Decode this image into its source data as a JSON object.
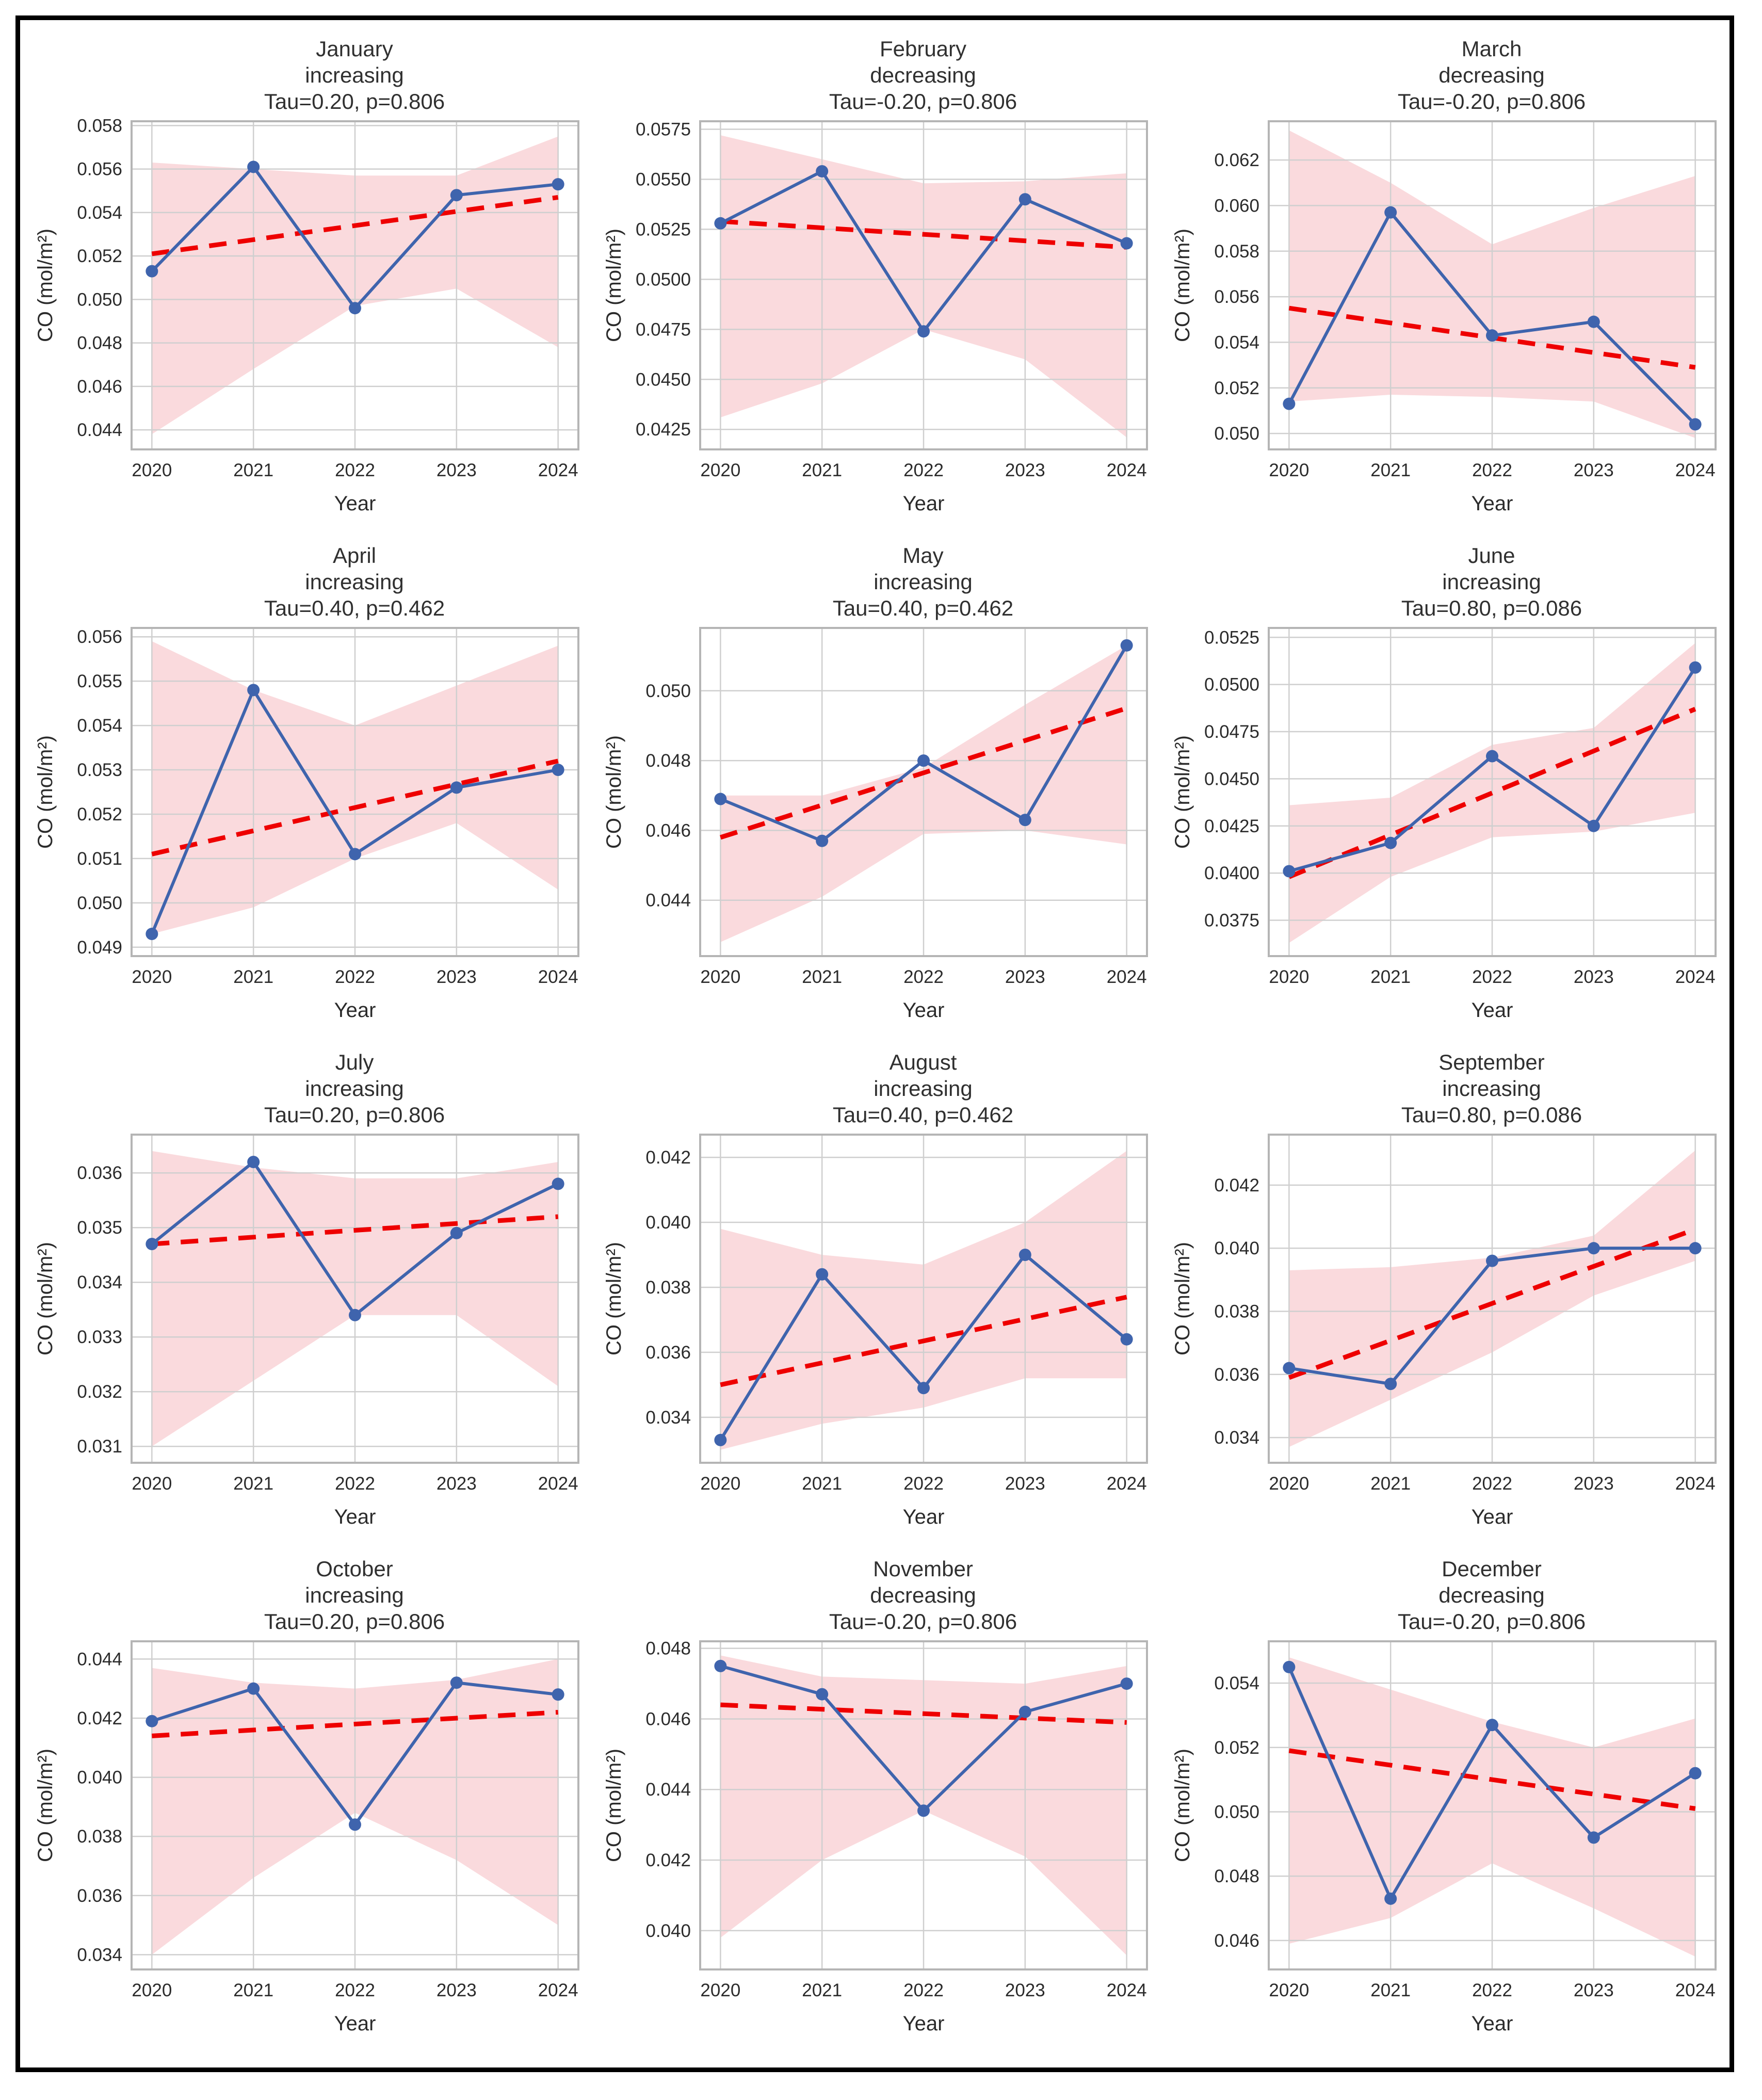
{
  "figure": {
    "xlabel": "Year",
    "ylabel": "CO (mol/m²)",
    "x_ticks": [
      "2020",
      "2021",
      "2022",
      "2023",
      "2024"
    ],
    "colors": {
      "line": "#3f64ad",
      "marker": "#3f64ad",
      "trend": "#ee0000",
      "band": "#fadadd",
      "grid": "#cfcfcf",
      "spine": "#b5b5b5",
      "text": "#2b2b2b",
      "title": "#303030",
      "frame": "#000000"
    }
  },
  "chart_data": [
    {
      "type": "line",
      "title": "January",
      "subtitle": "increasing",
      "stats": "Tau=0.20, p=0.806",
      "x": [
        2020,
        2021,
        2022,
        2023,
        2024
      ],
      "values": [
        0.0513,
        0.0561,
        0.0496,
        0.0548,
        0.0553
      ],
      "trend": {
        "start": 0.0521,
        "end": 0.0547
      },
      "band_upper": [
        0.0563,
        0.056,
        0.0557,
        0.0557,
        0.0575
      ],
      "band_lower": [
        0.0438,
        0.0468,
        0.0497,
        0.0505,
        0.0478
      ],
      "ytick_labels": [
        "0.044",
        "0.046",
        "0.048",
        "0.050",
        "0.052",
        "0.054",
        "0.056",
        "0.058"
      ],
      "yticks": [
        0.044,
        0.046,
        0.048,
        0.05,
        0.052,
        0.054,
        0.056,
        0.058
      ],
      "ylim": [
        0.0431,
        0.0582
      ]
    },
    {
      "type": "line",
      "title": "February",
      "subtitle": "decreasing",
      "stats": "Tau=-0.20, p=0.806",
      "x": [
        2020,
        2021,
        2022,
        2023,
        2024
      ],
      "values": [
        0.0528,
        0.0554,
        0.0474,
        0.054,
        0.0518
      ],
      "trend": {
        "start": 0.0529,
        "end": 0.0516
      },
      "band_upper": [
        0.0572,
        0.056,
        0.0548,
        0.0549,
        0.0553
      ],
      "band_lower": [
        0.0431,
        0.0448,
        0.0475,
        0.046,
        0.0421
      ],
      "ytick_labels": [
        "0.0425",
        "0.0450",
        "0.0475",
        "0.0500",
        "0.0525",
        "0.0550",
        "0.0575"
      ],
      "yticks": [
        0.0425,
        0.045,
        0.0475,
        0.05,
        0.0525,
        0.055,
        0.0575
      ],
      "ylim": [
        0.0415,
        0.0579
      ]
    },
    {
      "type": "line",
      "title": "March",
      "subtitle": "decreasing",
      "stats": "Tau=-0.20, p=0.806",
      "x": [
        2020,
        2021,
        2022,
        2023,
        2024
      ],
      "values": [
        0.0513,
        0.0597,
        0.0543,
        0.0549,
        0.0504
      ],
      "trend": {
        "start": 0.0555,
        "end": 0.0529
      },
      "band_upper": [
        0.0633,
        0.061,
        0.0583,
        0.0599,
        0.0613
      ],
      "band_lower": [
        0.0514,
        0.0517,
        0.0516,
        0.0514,
        0.0498
      ],
      "ytick_labels": [
        "0.050",
        "0.052",
        "0.054",
        "0.056",
        "0.058",
        "0.060",
        "0.062"
      ],
      "yticks": [
        0.05,
        0.052,
        0.054,
        0.056,
        0.058,
        0.06,
        0.062
      ],
      "ylim": [
        0.0493,
        0.0637
      ]
    },
    {
      "type": "line",
      "title": "April",
      "subtitle": "increasing",
      "stats": "Tau=0.40, p=0.462",
      "x": [
        2020,
        2021,
        2022,
        2023,
        2024
      ],
      "values": [
        0.0493,
        0.0548,
        0.0511,
        0.0526,
        0.053
      ],
      "trend": {
        "start": 0.0511,
        "end": 0.0532
      },
      "band_upper": [
        0.0559,
        0.0548,
        0.054,
        0.0549,
        0.0558
      ],
      "band_lower": [
        0.0493,
        0.0499,
        0.051,
        0.0518,
        0.0503
      ],
      "ytick_labels": [
        "0.049",
        "0.050",
        "0.051",
        "0.052",
        "0.053",
        "0.054",
        "0.055",
        "0.056"
      ],
      "yticks": [
        0.049,
        0.05,
        0.051,
        0.052,
        0.053,
        0.054,
        0.055,
        0.056
      ],
      "ylim": [
        0.0488,
        0.0562
      ]
    },
    {
      "type": "line",
      "title": "May",
      "subtitle": "increasing",
      "stats": "Tau=0.40, p=0.462",
      "x": [
        2020,
        2021,
        2022,
        2023,
        2024
      ],
      "values": [
        0.0469,
        0.0457,
        0.048,
        0.0463,
        0.0513
      ],
      "trend": {
        "start": 0.0458,
        "end": 0.0495
      },
      "band_upper": [
        0.047,
        0.047,
        0.0478,
        0.0496,
        0.0513
      ],
      "band_lower": [
        0.0428,
        0.0441,
        0.0459,
        0.046,
        0.0456
      ],
      "ytick_labels": [
        "0.044",
        "0.046",
        "0.048",
        "0.050"
      ],
      "yticks": [
        0.044,
        0.046,
        0.048,
        0.05
      ],
      "ylim": [
        0.0424,
        0.0518
      ]
    },
    {
      "type": "line",
      "title": "June",
      "subtitle": "increasing",
      "stats": "Tau=0.80, p=0.086",
      "x": [
        2020,
        2021,
        2022,
        2023,
        2024
      ],
      "values": [
        0.0401,
        0.0416,
        0.0462,
        0.0425,
        0.0509
      ],
      "trend": {
        "start": 0.0398,
        "end": 0.0487
      },
      "band_upper": [
        0.0436,
        0.044,
        0.0468,
        0.0477,
        0.0522
      ],
      "band_lower": [
        0.0363,
        0.0398,
        0.0419,
        0.0422,
        0.0432
      ],
      "ytick_labels": [
        "0.0375",
        "0.0400",
        "0.0425",
        "0.0450",
        "0.0475",
        "0.0500",
        "0.0525"
      ],
      "yticks": [
        0.0375,
        0.04,
        0.0425,
        0.045,
        0.0475,
        0.05,
        0.0525
      ],
      "ylim": [
        0.0356,
        0.053
      ]
    },
    {
      "type": "line",
      "title": "July",
      "subtitle": "increasing",
      "stats": "Tau=0.20, p=0.806",
      "x": [
        2020,
        2021,
        2022,
        2023,
        2024
      ],
      "values": [
        0.0347,
        0.0362,
        0.0334,
        0.0349,
        0.0358
      ],
      "trend": {
        "start": 0.0347,
        "end": 0.0352
      },
      "band_upper": [
        0.0364,
        0.0361,
        0.0359,
        0.0359,
        0.0362
      ],
      "band_lower": [
        0.031,
        0.0322,
        0.0334,
        0.0334,
        0.0321
      ],
      "ytick_labels": [
        "0.031",
        "0.032",
        "0.033",
        "0.034",
        "0.035",
        "0.036"
      ],
      "yticks": [
        0.031,
        0.032,
        0.033,
        0.034,
        0.035,
        0.036
      ],
      "ylim": [
        0.0307,
        0.0367
      ]
    },
    {
      "type": "line",
      "title": "August",
      "subtitle": "increasing",
      "stats": "Tau=0.40, p=0.462",
      "x": [
        2020,
        2021,
        2022,
        2023,
        2024
      ],
      "values": [
        0.0333,
        0.0384,
        0.0349,
        0.039,
        0.0364
      ],
      "trend": {
        "start": 0.035,
        "end": 0.0377
      },
      "band_upper": [
        0.0398,
        0.039,
        0.0387,
        0.04,
        0.0422
      ],
      "band_lower": [
        0.033,
        0.0338,
        0.0343,
        0.0352,
        0.0352
      ],
      "ytick_labels": [
        "0.034",
        "0.036",
        "0.038",
        "0.040",
        "0.042"
      ],
      "yticks": [
        0.034,
        0.036,
        0.038,
        0.04,
        0.042
      ],
      "ylim": [
        0.0326,
        0.0427
      ]
    },
    {
      "type": "line",
      "title": "September",
      "subtitle": "increasing",
      "stats": "Tau=0.80, p=0.086",
      "x": [
        2020,
        2021,
        2022,
        2023,
        2024
      ],
      "values": [
        0.0362,
        0.0357,
        0.0396,
        0.04,
        0.04
      ],
      "trend": {
        "start": 0.0359,
        "end": 0.0406
      },
      "band_upper": [
        0.0393,
        0.0394,
        0.0397,
        0.0404,
        0.0431
      ],
      "band_lower": [
        0.0337,
        0.0352,
        0.0367,
        0.0385,
        0.0396
      ],
      "ytick_labels": [
        "0.034",
        "0.036",
        "0.038",
        "0.040",
        "0.042"
      ],
      "yticks": [
        0.034,
        0.036,
        0.038,
        0.04,
        0.042
      ],
      "ylim": [
        0.0332,
        0.0436
      ]
    },
    {
      "type": "line",
      "title": "October",
      "subtitle": "increasing",
      "stats": "Tau=0.20, p=0.806",
      "x": [
        2020,
        2021,
        2022,
        2023,
        2024
      ],
      "values": [
        0.0419,
        0.043,
        0.0384,
        0.0432,
        0.0428
      ],
      "trend": {
        "start": 0.0414,
        "end": 0.0422
      },
      "band_upper": [
        0.0437,
        0.0432,
        0.043,
        0.0433,
        0.044
      ],
      "band_lower": [
        0.034,
        0.0366,
        0.0388,
        0.0372,
        0.035
      ],
      "ytick_labels": [
        "0.034",
        "0.036",
        "0.038",
        "0.040",
        "0.042",
        "0.044"
      ],
      "yticks": [
        0.034,
        0.036,
        0.038,
        0.04,
        0.042,
        0.044
      ],
      "ylim": [
        0.0335,
        0.0446
      ]
    },
    {
      "type": "line",
      "title": "November",
      "subtitle": "decreasing",
      "stats": "Tau=-0.20, p=0.806",
      "x": [
        2020,
        2021,
        2022,
        2023,
        2024
      ],
      "values": [
        0.0475,
        0.0467,
        0.0434,
        0.0462,
        0.047
      ],
      "trend": {
        "start": 0.0464,
        "end": 0.0459
      },
      "band_upper": [
        0.0478,
        0.0472,
        0.0471,
        0.047,
        0.0475
      ],
      "band_lower": [
        0.0398,
        0.042,
        0.0434,
        0.0421,
        0.0393
      ],
      "ytick_labels": [
        "0.040",
        "0.042",
        "0.044",
        "0.046",
        "0.048"
      ],
      "yticks": [
        0.04,
        0.042,
        0.044,
        0.046,
        0.048
      ],
      "ylim": [
        0.0389,
        0.0482
      ]
    },
    {
      "type": "line",
      "title": "December",
      "subtitle": "decreasing",
      "stats": "Tau=-0.20, p=0.806",
      "x": [
        2020,
        2021,
        2022,
        2023,
        2024
      ],
      "values": [
        0.0545,
        0.0473,
        0.0527,
        0.0492,
        0.0512
      ],
      "trend": {
        "start": 0.0519,
        "end": 0.0501
      },
      "band_upper": [
        0.0548,
        0.0538,
        0.0528,
        0.052,
        0.0529
      ],
      "band_lower": [
        0.0459,
        0.0467,
        0.0484,
        0.047,
        0.0455
      ],
      "ytick_labels": [
        "0.046",
        "0.048",
        "0.050",
        "0.052",
        "0.054"
      ],
      "yticks": [
        0.046,
        0.048,
        0.05,
        0.052,
        0.054
      ],
      "ylim": [
        0.0451,
        0.0553
      ]
    }
  ]
}
